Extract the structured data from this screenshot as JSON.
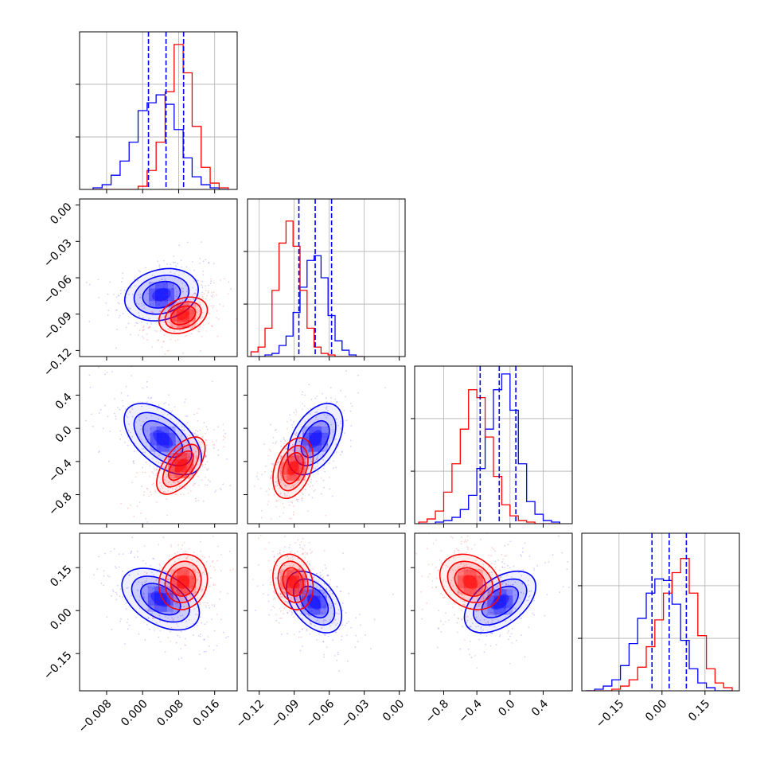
{
  "colors": {
    "series_a": "#0000ff",
    "series_b": "#ff0000",
    "quantile_line": "#0000ff",
    "grid": "#b0b0b0",
    "axes": "#000000"
  },
  "chart_data": [
    {
      "type": "histogram",
      "panel": "diag-0",
      "series": [
        "blue",
        "red"
      ],
      "xlim": [
        -0.014,
        0.021
      ],
      "quantile_lines": [
        0.0013,
        0.0052,
        0.0091
      ],
      "bins": {
        "x": [
          -0.01,
          -0.008,
          -0.006,
          -0.004,
          -0.002,
          0.0,
          0.002,
          0.004,
          0.006,
          0.008,
          0.01,
          0.012,
          0.014,
          0.016,
          0.018
        ],
        "blue": [
          0.01,
          0.03,
          0.09,
          0.18,
          0.3,
          0.5,
          0.55,
          0.6,
          0.54,
          0.38,
          0.2,
          0.08,
          0.03,
          0.01,
          0.0
        ],
        "red": [
          0.0,
          0.0,
          0.0,
          0.0,
          0.0,
          0.02,
          0.12,
          0.3,
          0.62,
          0.92,
          0.74,
          0.4,
          0.14,
          0.04,
          0.01
        ]
      }
    },
    {
      "type": "histogram",
      "panel": "diag-1",
      "series": [
        "blue",
        "red"
      ],
      "xlim": [
        -0.13,
        0.005
      ],
      "quantile_lines": [
        -0.086,
        -0.072,
        -0.058
      ],
      "bins": {
        "x": [
          -0.124,
          -0.118,
          -0.112,
          -0.106,
          -0.1,
          -0.094,
          -0.088,
          -0.082,
          -0.076,
          -0.07,
          -0.064,
          -0.058,
          -0.052,
          -0.046,
          -0.04,
          -0.034
        ],
        "blue": [
          0.0,
          0.0,
          0.01,
          0.02,
          0.07,
          0.13,
          0.28,
          0.44,
          0.61,
          0.64,
          0.5,
          0.26,
          0.1,
          0.04,
          0.01,
          0.0
        ],
        "red": [
          0.03,
          0.06,
          0.18,
          0.42,
          0.72,
          0.86,
          0.7,
          0.42,
          0.18,
          0.06,
          0.02,
          0.01,
          0.0,
          0.0,
          0.0,
          0.0
        ]
      }
    },
    {
      "type": "histogram",
      "panel": "diag-2",
      "series": [
        "blue",
        "red"
      ],
      "xlim": [
        -1.15,
        0.75
      ],
      "quantile_lines": [
        -0.36,
        -0.13,
        0.07
      ],
      "bins": {
        "x": [
          -1.05,
          -0.95,
          -0.85,
          -0.75,
          -0.65,
          -0.55,
          -0.45,
          -0.35,
          -0.25,
          -0.15,
          -0.05,
          0.05,
          0.15,
          0.25,
          0.35,
          0.45,
          0.55
        ],
        "blue": [
          0.0,
          0.0,
          0.01,
          0.02,
          0.04,
          0.09,
          0.18,
          0.35,
          0.6,
          0.85,
          0.95,
          0.72,
          0.38,
          0.14,
          0.06,
          0.02,
          0.01
        ],
        "red": [
          0.01,
          0.03,
          0.08,
          0.2,
          0.38,
          0.6,
          0.85,
          0.8,
          0.55,
          0.3,
          0.12,
          0.05,
          0.02,
          0.01,
          0.0,
          0.0,
          0.0
        ]
      }
    },
    {
      "type": "histogram",
      "panel": "diag-3",
      "series": [
        "blue",
        "red"
      ],
      "xlim": [
        -0.28,
        0.27
      ],
      "quantile_lines": [
        -0.035,
        0.025,
        0.085
      ],
      "bins": {
        "x": [
          -0.25,
          -0.22,
          -0.19,
          -0.16,
          -0.13,
          -0.1,
          -0.07,
          -0.04,
          -0.01,
          0.02,
          0.05,
          0.08,
          0.11,
          0.14,
          0.17,
          0.2,
          0.23
        ],
        "blue": [
          0.0,
          0.01,
          0.03,
          0.07,
          0.16,
          0.3,
          0.46,
          0.62,
          0.71,
          0.7,
          0.55,
          0.32,
          0.14,
          0.05,
          0.02,
          0.0,
          0.0
        ],
        "red": [
          0.0,
          0.0,
          0.0,
          0.01,
          0.03,
          0.07,
          0.15,
          0.28,
          0.45,
          0.62,
          0.75,
          0.84,
          0.62,
          0.35,
          0.14,
          0.05,
          0.02
        ]
      }
    },
    {
      "type": "scatter",
      "panel": "pair-1-0",
      "xlim": [
        -0.014,
        0.021
      ],
      "ylim": [
        -0.125,
        0.005
      ],
      "blue": {
        "center": [
          0.0042,
          -0.074
        ],
        "spread": [
          0.0038,
          0.01
        ],
        "corr": 0.2
      },
      "red": {
        "center": [
          0.009,
          -0.091
        ],
        "spread": [
          0.0025,
          0.007
        ],
        "corr": 0.3
      }
    },
    {
      "type": "scatter",
      "panel": "pair-2-0",
      "xlim": [
        -0.014,
        0.021
      ],
      "ylim": [
        -1.15,
        0.75
      ],
      "blue": {
        "center": [
          0.0045,
          -0.13
        ],
        "spread": [
          0.004,
          0.2
        ],
        "corr": -0.55
      },
      "red": {
        "center": [
          0.0085,
          -0.45
        ],
        "spread": [
          0.0025,
          0.16
        ],
        "corr": 0.6
      }
    },
    {
      "type": "scatter",
      "panel": "pair-2-1",
      "xlim": [
        -0.13,
        0.005
      ],
      "ylim": [
        -1.15,
        0.75
      ],
      "blue": {
        "center": [
          -0.072,
          -0.13
        ],
        "spread": [
          0.011,
          0.2
        ],
        "corr": 0.45
      },
      "red": {
        "center": [
          -0.091,
          -0.48
        ],
        "spread": [
          0.008,
          0.17
        ],
        "corr": 0.35
      }
    },
    {
      "type": "scatter",
      "panel": "pair-3-0",
      "xlim": [
        -0.014,
        0.021
      ],
      "ylim": [
        -0.28,
        0.27
      ],
      "blue": {
        "center": [
          0.004,
          0.04
        ],
        "spread": [
          0.004,
          0.05
        ],
        "corr": -0.45
      },
      "red": {
        "center": [
          0.009,
          0.1
        ],
        "spread": [
          0.0025,
          0.045
        ],
        "corr": 0.1
      }
    },
    {
      "type": "scatter",
      "panel": "pair-3-1",
      "xlim": [
        -0.13,
        0.005
      ],
      "ylim": [
        -0.28,
        0.27
      ],
      "blue": {
        "center": [
          -0.073,
          0.03
        ],
        "spread": [
          0.011,
          0.05
        ],
        "corr": -0.45
      },
      "red": {
        "center": [
          -0.091,
          0.1
        ],
        "spread": [
          0.008,
          0.045
        ],
        "corr": -0.2
      }
    },
    {
      "type": "scatter",
      "panel": "pair-3-2",
      "xlim": [
        -1.15,
        0.75
      ],
      "ylim": [
        -0.28,
        0.27
      ],
      "blue": {
        "center": [
          -0.12,
          0.03
        ],
        "spread": [
          0.2,
          0.05
        ],
        "corr": 0.5
      },
      "red": {
        "center": [
          -0.48,
          0.1
        ],
        "spread": [
          0.17,
          0.045
        ],
        "corr": -0.25
      }
    }
  ],
  "axes": {
    "x": [
      {
        "ticks": [
          -0.008,
          0.0,
          0.008,
          0.016
        ],
        "labels": [
          "−0.008",
          "0.000",
          "0.008",
          "0.016"
        ]
      },
      {
        "ticks": [
          -0.12,
          -0.09,
          -0.06,
          -0.03,
          0.0
        ],
        "labels": [
          "−0.12",
          "−0.09",
          "−0.06",
          "−0.03",
          "0.00"
        ]
      },
      {
        "ticks": [
          -0.8,
          -0.4,
          0.0,
          0.4
        ],
        "labels": [
          "−0.8",
          "−0.4",
          "0.0",
          "0.4"
        ]
      },
      {
        "ticks": [
          -0.15,
          0.0,
          0.15
        ],
        "labels": [
          "−0.15",
          "0.00",
          "0.15"
        ]
      }
    ],
    "y": [
      null,
      {
        "ticks": [
          0.0,
          -0.03,
          -0.06,
          -0.09,
          -0.12
        ],
        "labels": [
          "0.00",
          "−0.03",
          "−0.06",
          "−0.09",
          "−0.12"
        ]
      },
      {
        "ticks": [
          0.4,
          0.0,
          -0.4,
          -0.8
        ],
        "labels": [
          "0.4",
          "0.0",
          "−0.4",
          "−0.8"
        ]
      },
      {
        "ticks": [
          0.15,
          0.0,
          -0.15
        ],
        "labels": [
          "0.15",
          "0.00",
          "−0.15"
        ]
      }
    ],
    "diag_yticks": [
      0.333,
      0.667
    ]
  }
}
